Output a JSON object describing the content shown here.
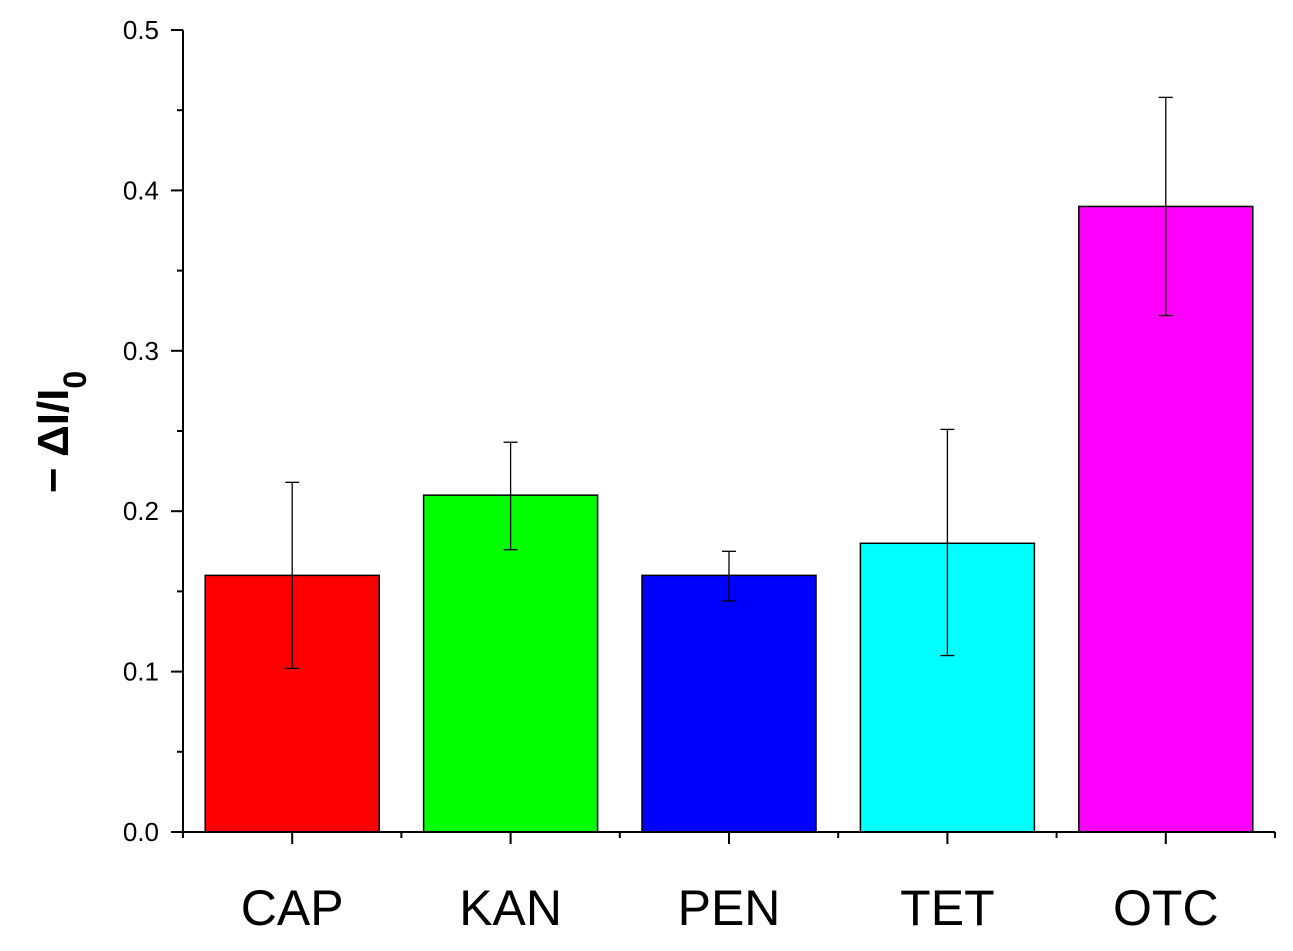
{
  "chart_data": {
    "type": "bar",
    "title": "",
    "xlabel": "",
    "ylabel": {
      "prefix": "− ",
      "main": "ΔI/I",
      "subscript": "0"
    },
    "categories": [
      "CAP",
      "KAN",
      "PEN",
      "TET",
      "OTC"
    ],
    "values": [
      0.16,
      0.21,
      0.16,
      0.18,
      0.39
    ],
    "error_low": [
      0.102,
      0.176,
      0.144,
      0.11,
      0.322
    ],
    "error_high": [
      0.218,
      0.243,
      0.175,
      0.251,
      0.458
    ],
    "colors": [
      "#ff0000",
      "#00ff00",
      "#0000ff",
      "#00ffff",
      "#ff00ff"
    ],
    "ylim": [
      0.0,
      0.5
    ],
    "yticks": [
      "0.0",
      "0.1",
      "0.2",
      "0.3",
      "0.4",
      "0.5"
    ],
    "grid": false,
    "legend": "none"
  }
}
